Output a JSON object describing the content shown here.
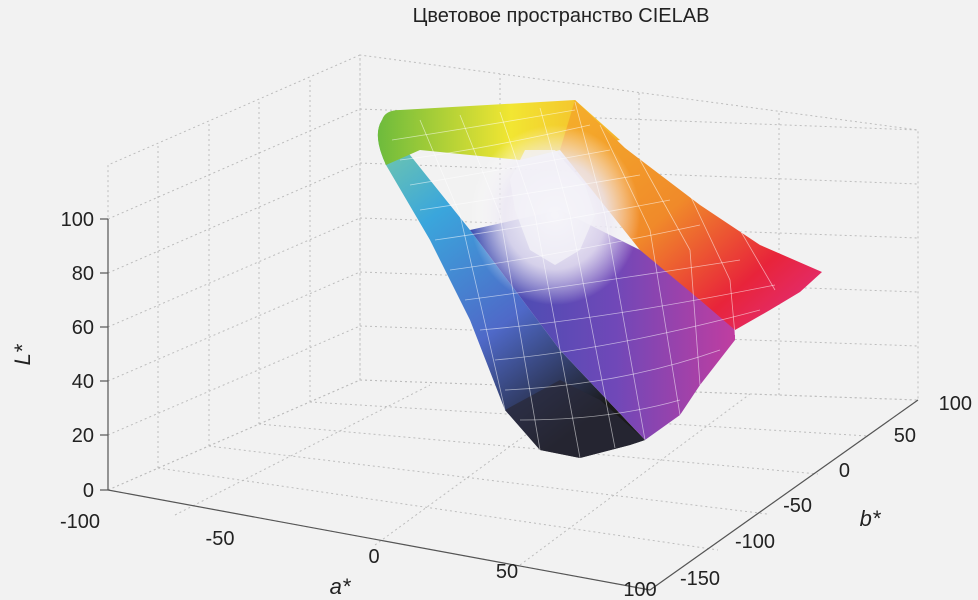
{
  "chart_data": {
    "type": "surface3d",
    "title": "Цветовое пространство CIELAB",
    "xlabel": "a*",
    "ylabel": "b*",
    "zlabel": "L*",
    "xlim": [
      -100,
      100
    ],
    "ylim": [
      -150,
      100
    ],
    "zlim": [
      0,
      100
    ],
    "x_ticks": [
      "-100",
      "-50",
      "0",
      "50",
      "100"
    ],
    "y_ticks": [
      "-150",
      "-100",
      "-50",
      "0",
      "50",
      "100"
    ],
    "z_ticks": [
      "0",
      "20",
      "40",
      "60",
      "80",
      "100"
    ],
    "grid": true,
    "surface": {
      "description_colors": [
        "#6dbb3c",
        "#f2e632",
        "#f08a2a",
        "#e8243a",
        "#e0308a",
        "#8a4fb8",
        "#3c4fb0",
        "#3aa6dc",
        "#1a1a1a"
      ],
      "gamut_boundary": [
        {
          "hue": "green",
          "a": -86,
          "b": 83,
          "L": 88
        },
        {
          "hue": "yellow",
          "a": -5,
          "b": 95,
          "L": 97
        },
        {
          "hue": "orange",
          "a": 50,
          "b": 75,
          "L": 75
        },
        {
          "hue": "red",
          "a": 80,
          "b": 67,
          "L": 54
        },
        {
          "hue": "magenta",
          "a": 98,
          "b": -60,
          "L": 60
        },
        {
          "hue": "purple",
          "a": 45,
          "b": -100,
          "L": 40
        },
        {
          "hue": "blue",
          "a": 68,
          "b": -112,
          "L": 32
        },
        {
          "hue": "cyan",
          "a": -48,
          "b": -14,
          "L": 91
        }
      ],
      "white_point": {
        "a": 0,
        "b": 0,
        "L": 100
      },
      "black_point": {
        "a": 0,
        "b": 0,
        "L": 0
      }
    }
  }
}
